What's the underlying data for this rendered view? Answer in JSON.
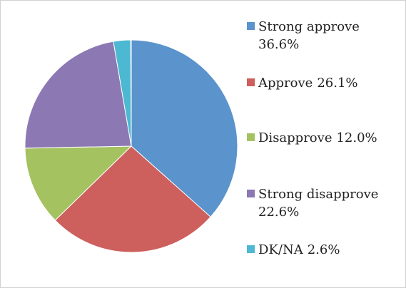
{
  "chart_data": {
    "type": "pie",
    "categories": [
      "Strong approve",
      "Approve",
      "Disapprove",
      "Strong disapprove",
      "DK/NA"
    ],
    "values": [
      36.6,
      26.1,
      12.0,
      22.6,
      2.6
    ],
    "value_labels": [
      "36.6%",
      "26.1%",
      "12.0%",
      "22.6%",
      "2.6%"
    ],
    "colors": [
      "#5b93cc",
      "#cd5f5c",
      "#a5c261",
      "#8c78b3",
      "#4db8d1"
    ],
    "legend": "right"
  }
}
